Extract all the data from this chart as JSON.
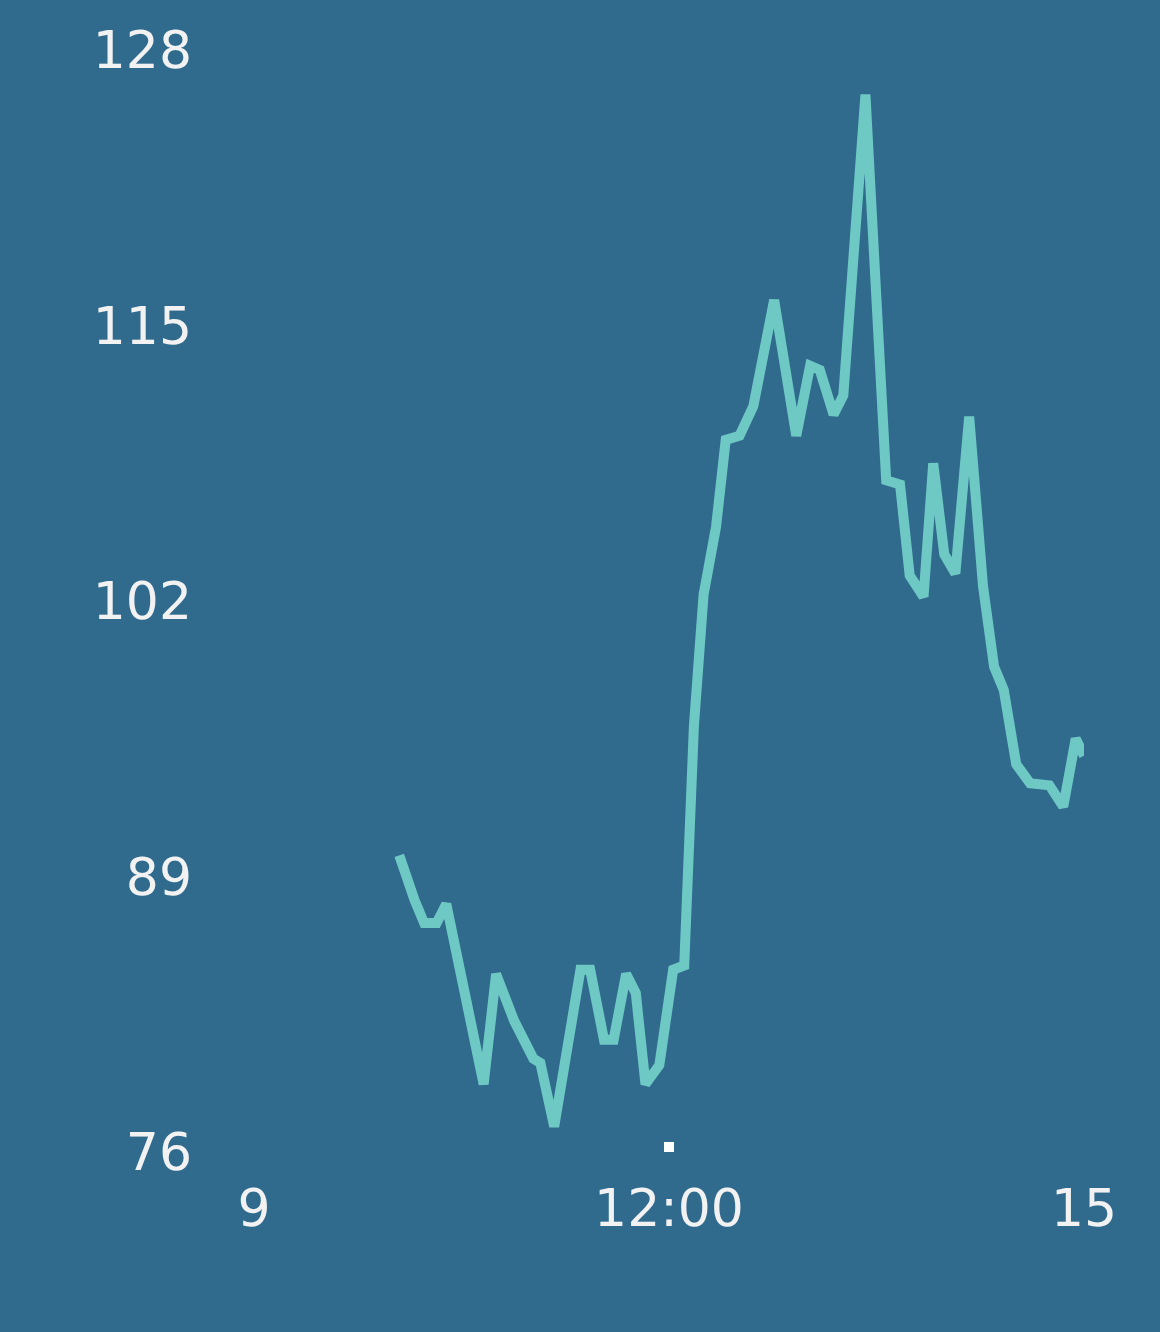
{
  "chart_data": {
    "type": "line",
    "x": [
      10.05,
      10.16,
      10.23,
      10.32,
      10.39,
      10.66,
      10.75,
      10.88,
      11.02,
      11.07,
      11.17,
      11.36,
      11.43,
      11.53,
      11.6,
      11.69,
      11.76,
      11.83,
      11.93,
      12.03,
      12.11,
      12.18,
      12.25,
      12.34,
      12.41,
      12.51,
      12.61,
      12.76,
      12.92,
      13.02,
      13.09,
      13.19,
      13.26,
      13.42,
      13.57,
      13.67,
      13.74,
      13.84,
      13.91,
      13.99,
      14.07,
      14.17,
      14.27,
      14.35,
      14.42,
      14.51,
      14.61,
      14.75,
      14.85,
      14.94,
      15
    ],
    "series": [
      {
        "color": "#6ec9c4",
        "values": [
          90,
          87.9,
          86.8,
          86.8,
          87.7,
          79.2,
          84.4,
          82.2,
          80.4,
          80.2,
          77.2,
          84.6,
          84.6,
          81.3,
          81.3,
          84.4,
          83.5,
          79.2,
          80.1,
          84.6,
          84.8,
          96.1,
          102.3,
          105.5,
          109.6,
          109.8,
          111.2,
          116.2,
          109.8,
          113.1,
          112.9,
          110.8,
          111.7,
          125.9,
          107.7,
          107.5,
          103.2,
          102.2,
          108.5,
          104.2,
          103.3,
          110.7,
          102.7,
          98.9,
          97.8,
          94.3,
          93.4,
          93.3,
          92.3,
          95.5,
          94.7
        ]
      }
    ],
    "xlim": [
      9,
      15
    ],
    "ylim": [
      76,
      128
    ],
    "xticks": [
      9,
      {
        "value": 12,
        "label": "12:00"
      },
      15
    ],
    "yticks": [
      76,
      89,
      102,
      115,
      128
    ],
    "grid": false
  }
}
